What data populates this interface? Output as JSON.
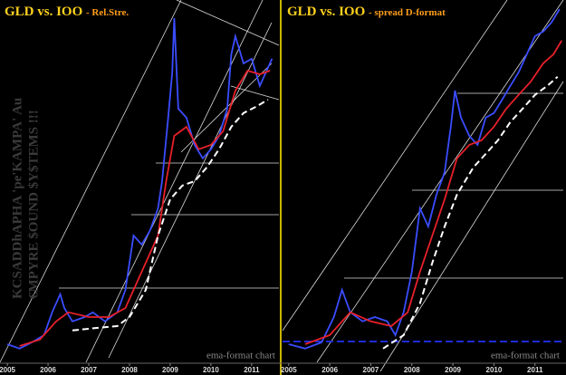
{
  "chart_data": [
    {
      "type": "line",
      "title": "GLD vs. IOO",
      "subtitle": "- Rel.Stre.",
      "annotation": "ema-format chart",
      "xlim": [
        2004.82,
        2011.67
      ],
      "xticks": [
        2005,
        2006,
        2007,
        2008,
        2009,
        2010,
        2011
      ],
      "ylim": [
        0,
        100
      ],
      "series": [
        {
          "color": "#3b4dff",
          "style": "solid",
          "x": [
            2005.0,
            2005.3,
            2005.6,
            2005.9,
            2006.1,
            2006.3,
            2006.4,
            2006.6,
            2006.9,
            2007.1,
            2007.4,
            2007.7,
            2007.9,
            2008.1,
            2008.3,
            2008.5,
            2008.7,
            2008.8,
            2008.95,
            2009.05,
            2009.1,
            2009.2,
            2009.4,
            2009.6,
            2009.8,
            2010.0,
            2010.2,
            2010.4,
            2010.5,
            2010.6,
            2010.8,
            2011.0,
            2011.2,
            2011.35,
            2011.5
          ],
          "values": [
            5,
            3.8,
            5.5,
            7.5,
            13.8,
            18.8,
            15,
            11.3,
            12.5,
            13.8,
            11.3,
            13.8,
            20,
            35,
            32.5,
            36.3,
            42.5,
            50,
            67.5,
            80,
            95,
            70,
            67.5,
            60,
            56.3,
            58.8,
            62.5,
            70,
            85,
            90,
            82.5,
            83.8,
            76.3,
            80,
            83.8
          ]
        },
        {
          "color": "#e8202a",
          "style": "solid",
          "x": [
            2005.3,
            2005.8,
            2006.2,
            2006.5,
            2007.0,
            2007.5,
            2007.9,
            2008.3,
            2008.7,
            2008.9,
            2009.1,
            2009.4,
            2009.7,
            2010.0,
            2010.3,
            2010.6,
            2010.9,
            2011.2,
            2011.45
          ],
          "values": [
            4.5,
            6.3,
            11.3,
            13.8,
            12.5,
            12.5,
            15,
            25,
            35,
            50,
            62.5,
            65,
            58.8,
            60,
            63.8,
            75,
            80.5,
            79.5,
            80.5
          ]
        },
        {
          "color": "#ffffff",
          "style": "dashed",
          "x": [
            2006.6,
            2007.2,
            2007.7,
            2008.0,
            2008.4,
            2008.7,
            2009.0,
            2009.3,
            2009.6,
            2009.9,
            2010.2,
            2010.5,
            2010.8,
            2011.1,
            2011.4
          ],
          "values": [
            8.8,
            9.5,
            10,
            12.5,
            20,
            35,
            45,
            48.8,
            50,
            53.8,
            58.8,
            65,
            68.8,
            70.5,
            72.5
          ]
        }
      ]
    },
    {
      "type": "line",
      "title": "GLD vs. IOO",
      "subtitle": "- spread D-format",
      "annotation": "ema-format chart",
      "xlim": [
        2004.85,
        2011.69
      ],
      "xticks": [
        2005,
        2006,
        2007,
        2008,
        2009,
        2010,
        2011
      ],
      "ylim": [
        0,
        100
      ],
      "series": [
        {
          "color": "#3b4dff",
          "style": "solid",
          "x": [
            2005.0,
            2005.4,
            2005.8,
            2006.1,
            2006.3,
            2006.5,
            2006.8,
            2007.1,
            2007.4,
            2007.6,
            2007.8,
            2008.0,
            2008.2,
            2008.4,
            2008.6,
            2008.8,
            2008.95,
            2009.05,
            2009.2,
            2009.4,
            2009.6,
            2009.8,
            2010.0,
            2010.2,
            2010.4,
            2010.6,
            2010.8,
            2011.0,
            2011.2,
            2011.4,
            2011.6
          ],
          "values": [
            5,
            3.8,
            5.5,
            12.5,
            20,
            13.8,
            11.3,
            12.5,
            11.3,
            7.5,
            13.8,
            25,
            42.5,
            37.5,
            46.3,
            52.5,
            65,
            75,
            67.5,
            62.5,
            60,
            67.5,
            68.8,
            72.5,
            76.3,
            80,
            85,
            90,
            91.3,
            93.8,
            97.5
          ]
        },
        {
          "color": "#e8202a",
          "style": "solid",
          "x": [
            2005.4,
            2006.0,
            2006.5,
            2007.0,
            2007.5,
            2007.9,
            2008.2,
            2008.5,
            2008.8,
            2009.1,
            2009.4,
            2009.7,
            2010.0,
            2010.3,
            2010.6,
            2010.9,
            2011.2,
            2011.45,
            2011.65
          ],
          "values": [
            5,
            7.5,
            13.8,
            11.3,
            10,
            13.8,
            25,
            35,
            45,
            56.3,
            60,
            61.3,
            65,
            70,
            73.8,
            77.5,
            82.5,
            85,
            88.8
          ]
        },
        {
          "color": "#ffffff",
          "style": "dashed",
          "x": [
            2007.3,
            2007.8,
            2008.2,
            2008.5,
            2008.8,
            2009.1,
            2009.5,
            2009.8,
            2010.1,
            2010.4,
            2010.7,
            2011.0,
            2011.3,
            2011.55
          ],
          "values": [
            3.8,
            7.5,
            16.3,
            27.5,
            37.5,
            46.3,
            53.8,
            57.5,
            61.3,
            66.3,
            70,
            73.8,
            76.3,
            78.8
          ]
        }
      ]
    }
  ],
  "watermark": [
    "KCSADDhAPHA 'pe'KAMPA' Au",
    "€MPYRE $OUND $Y$TEMS !!!"
  ]
}
